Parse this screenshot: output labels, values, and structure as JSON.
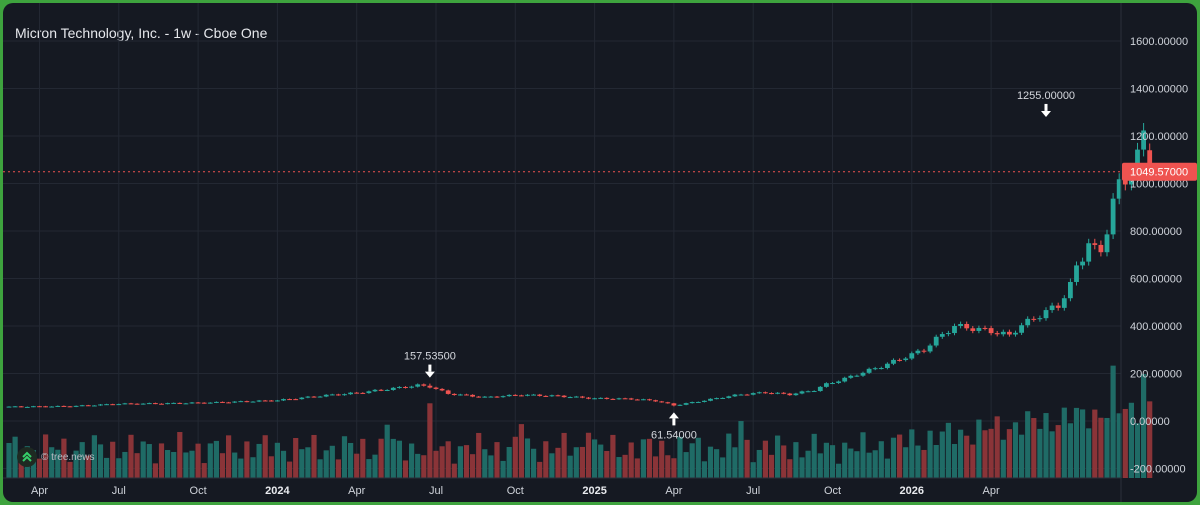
{
  "chart_data": {
    "type": "candlestick",
    "title": "Micron Technology, Inc. - 1w - Cboe One",
    "ylim": [
      -230,
      1730
    ],
    "y_ticks": [
      1600,
      1400,
      1200,
      1000,
      800,
      600,
      400,
      200,
      0,
      -200
    ],
    "y_tick_labels": [
      "1600.00000",
      "1400.00000",
      "1200.00000",
      "1000.00000",
      "800.00000",
      "600.00000",
      "400.00000",
      "200.00000",
      "0.00000",
      "-200.00000"
    ],
    "x_ticks": [
      {
        "label": "Apr",
        "bold": false,
        "index": 5
      },
      {
        "label": "Jul",
        "bold": false,
        "index": 18
      },
      {
        "label": "Oct",
        "bold": false,
        "index": 31
      },
      {
        "label": "2024",
        "bold": true,
        "index": 44
      },
      {
        "label": "Apr",
        "bold": false,
        "index": 57
      },
      {
        "label": "Jul",
        "bold": false,
        "index": 70
      },
      {
        "label": "Oct",
        "bold": false,
        "index": 83
      },
      {
        "label": "2025",
        "bold": true,
        "index": 96
      },
      {
        "label": "Apr",
        "bold": false,
        "index": 109
      },
      {
        "label": "Jul",
        "bold": false,
        "index": 122
      },
      {
        "label": "Oct",
        "bold": false,
        "index": 135
      },
      {
        "label": "2026",
        "bold": true,
        "index": 148
      },
      {
        "label": "Apr",
        "bold": false,
        "index": 161
      }
    ],
    "last_price": 1049.57,
    "last_price_label": "1049.57000",
    "annotations": [
      {
        "label": "157.53500",
        "value": 157.535,
        "index": 69,
        "position": "above"
      },
      {
        "label": "61.54000",
        "value": 61.54,
        "index": 109,
        "position": "below"
      },
      {
        "label": "1255.00000",
        "value": 1255.0,
        "index": 170,
        "position": "above"
      }
    ],
    "grid": true,
    "colors": {
      "up": "#26a69a",
      "down": "#ef5350",
      "up_volume": "#1f6b66",
      "down_volume": "#8a3438",
      "last_price_line": "#ef5350"
    }
  },
  "watermark": {
    "text": "© tree.news",
    "icon": "double-chevron-up-icon"
  }
}
